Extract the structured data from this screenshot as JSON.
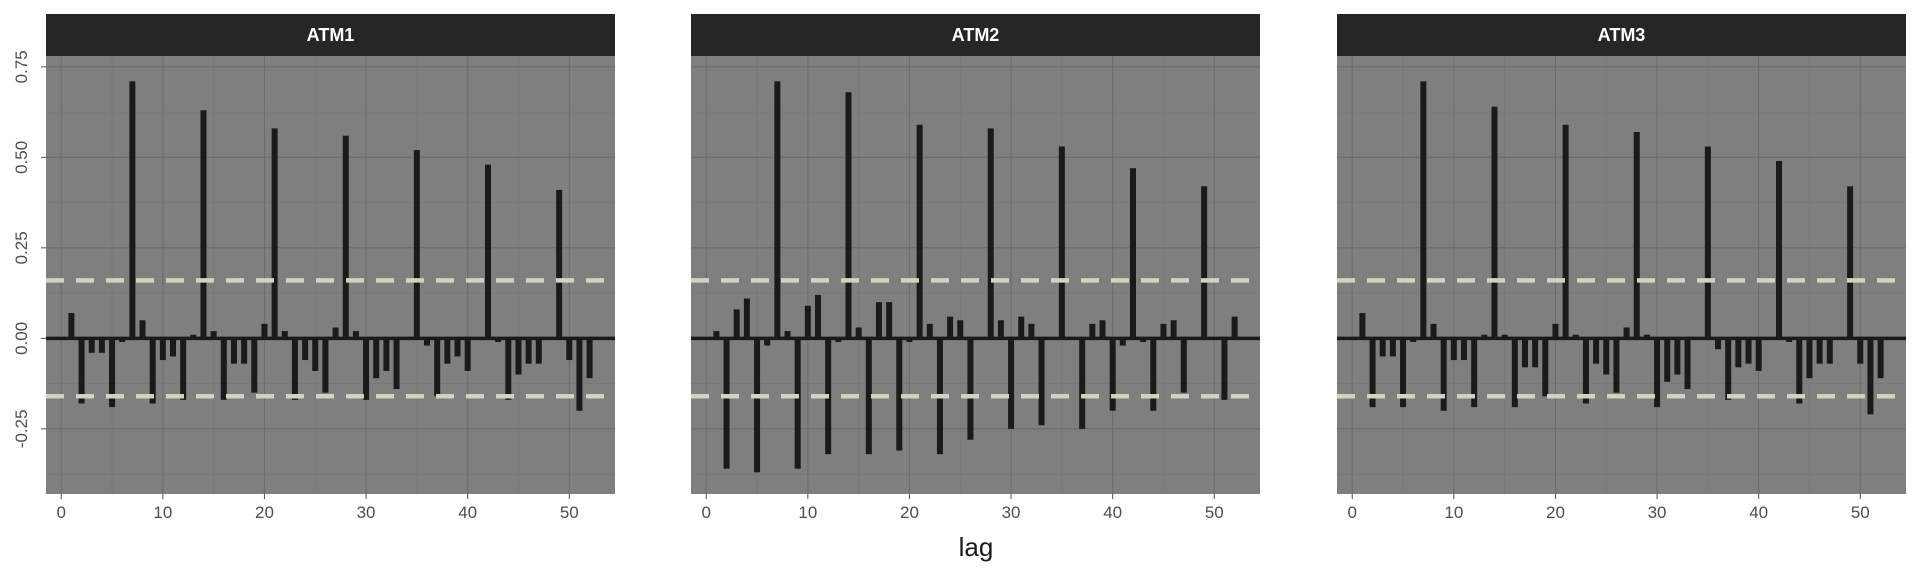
{
  "chart_data": {
    "type": "bar",
    "chart_kind": "acf",
    "xlabel": "lag",
    "ylabel": "",
    "xlim": [
      -1.5,
      54.5
    ],
    "ylim": [
      -0.43,
      0.78
    ],
    "x_ticks": [
      0,
      10,
      20,
      30,
      40,
      50
    ],
    "y_ticks": [
      -0.25,
      0,
      0.25,
      0.5,
      0.75
    ],
    "y_tick_labels": [
      "-0.25",
      "0.00",
      "0.25",
      "0.50",
      "0.75"
    ],
    "x_tick_labels": [
      "0",
      "10",
      "20",
      "30",
      "40",
      "50"
    ],
    "grid": true,
    "colors": {
      "panel_background": "#7f7f7f",
      "strip_background": "#262626",
      "bars": "#1a1a1a",
      "zero_line": "#1a1a1a",
      "confidence_bounds": "#d2d2c4",
      "grid_major": "#6c6c6c",
      "grid_minor": "#777777"
    },
    "panels": [
      {
        "title": "ATM1",
        "lags": [
          1,
          2,
          3,
          4,
          5,
          6,
          7,
          8,
          9,
          10,
          11,
          12,
          13,
          14,
          15,
          16,
          17,
          18,
          19,
          20,
          21,
          22,
          23,
          24,
          25,
          26,
          27,
          28,
          29,
          30,
          31,
          32,
          33,
          34,
          35,
          36,
          37,
          38,
          39,
          40,
          41,
          42,
          43,
          44,
          45,
          46,
          47,
          48,
          49,
          50,
          51,
          52
        ],
        "values": [
          0.07,
          -0.18,
          -0.04,
          -0.04,
          -0.19,
          -0.01,
          0.71,
          0.05,
          -0.18,
          -0.06,
          -0.05,
          -0.17,
          0.01,
          0.63,
          0.02,
          -0.17,
          -0.07,
          -0.07,
          -0.15,
          0.04,
          0.58,
          0.02,
          -0.17,
          -0.06,
          -0.09,
          -0.15,
          0.03,
          0.56,
          0.02,
          -0.17,
          -0.11,
          -0.09,
          -0.14,
          0.0,
          0.52,
          -0.02,
          -0.16,
          -0.07,
          -0.05,
          -0.09,
          0.0,
          0.48,
          -0.01,
          -0.17,
          -0.1,
          -0.07,
          -0.07,
          0.0,
          0.41,
          -0.06,
          -0.2,
          -0.11
        ],
        "ci_upper": 0.16,
        "ci_lower": -0.16
      },
      {
        "title": "ATM2",
        "lags": [
          1,
          2,
          3,
          4,
          5,
          6,
          7,
          8,
          9,
          10,
          11,
          12,
          13,
          14,
          15,
          16,
          17,
          18,
          19,
          20,
          21,
          22,
          23,
          24,
          25,
          26,
          27,
          28,
          29,
          30,
          31,
          32,
          33,
          34,
          35,
          36,
          37,
          38,
          39,
          40,
          41,
          42,
          43,
          44,
          45,
          46,
          47,
          48,
          49,
          50,
          51,
          52
        ],
        "values": [
          0.02,
          -0.36,
          0.08,
          0.11,
          -0.37,
          -0.02,
          0.71,
          0.02,
          -0.36,
          0.09,
          0.12,
          -0.32,
          -0.01,
          0.68,
          0.03,
          -0.32,
          0.1,
          0.1,
          -0.31,
          -0.01,
          0.59,
          0.04,
          -0.32,
          0.06,
          0.05,
          -0.28,
          0.0,
          0.58,
          0.05,
          -0.25,
          0.06,
          0.04,
          -0.24,
          0.0,
          0.53,
          0.0,
          -0.25,
          0.04,
          0.05,
          -0.2,
          -0.02,
          0.47,
          -0.01,
          -0.2,
          0.04,
          0.05,
          -0.15,
          0.0,
          0.42,
          0.0,
          -0.17,
          0.06
        ],
        "ci_upper": 0.16,
        "ci_lower": -0.16
      },
      {
        "title": "ATM3",
        "lags": [
          1,
          2,
          3,
          4,
          5,
          6,
          7,
          8,
          9,
          10,
          11,
          12,
          13,
          14,
          15,
          16,
          17,
          18,
          19,
          20,
          21,
          22,
          23,
          24,
          25,
          26,
          27,
          28,
          29,
          30,
          31,
          32,
          33,
          34,
          35,
          36,
          37,
          38,
          39,
          40,
          41,
          42,
          43,
          44,
          45,
          46,
          47,
          48,
          49,
          50,
          51,
          52
        ],
        "values": [
          0.07,
          -0.19,
          -0.05,
          -0.05,
          -0.19,
          -0.01,
          0.71,
          0.04,
          -0.2,
          -0.06,
          -0.06,
          -0.19,
          0.01,
          0.64,
          0.01,
          -0.19,
          -0.08,
          -0.08,
          -0.16,
          0.04,
          0.59,
          0.01,
          -0.18,
          -0.07,
          -0.1,
          -0.15,
          0.03,
          0.57,
          0.01,
          -0.19,
          -0.12,
          -0.1,
          -0.14,
          0.0,
          0.53,
          -0.03,
          -0.17,
          -0.08,
          -0.07,
          -0.09,
          0.0,
          0.49,
          -0.01,
          -0.18,
          -0.11,
          -0.07,
          -0.07,
          0.0,
          0.42,
          -0.07,
          -0.21,
          -0.11
        ],
        "ci_upper": 0.16,
        "ci_lower": -0.16
      }
    ]
  }
}
